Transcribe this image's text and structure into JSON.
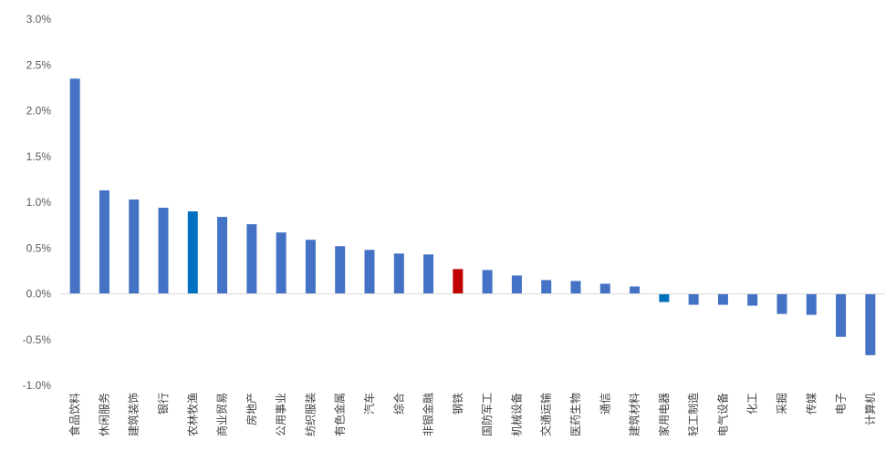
{
  "chart_data": {
    "type": "bar",
    "title": "",
    "xlabel": "",
    "ylabel": "",
    "ylim": [
      -1.0,
      3.0
    ],
    "yticks": [
      -1.0,
      -0.5,
      0.0,
      0.5,
      1.0,
      1.5,
      2.0,
      2.5,
      3.0
    ],
    "ytick_labels": [
      "-1.0%",
      "-0.5%",
      "0.0%",
      "0.5%",
      "1.0%",
      "1.5%",
      "2.0%",
      "2.5%",
      "3.0%"
    ],
    "grid": false,
    "legend": "none",
    "categories": [
      "食品饮料",
      "休闲服务",
      "建筑装饰",
      "银行",
      "农林牧渔",
      "商业贸易",
      "房地产",
      "公用事业",
      "纺织服装",
      "有色金属",
      "汽车",
      "综合",
      "非银金融",
      "钢铁",
      "国防军工",
      "机械设备",
      "交通运输",
      "医药生物",
      "通信",
      "建筑材料",
      "家用电器",
      "轻工制造",
      "电气设备",
      "化工",
      "采掘",
      "传媒",
      "电子",
      "计算机"
    ],
    "values": [
      2.35,
      1.13,
      1.03,
      0.94,
      0.9,
      0.84,
      0.76,
      0.67,
      0.59,
      0.52,
      0.48,
      0.44,
      0.43,
      0.27,
      0.26,
      0.2,
      0.15,
      0.14,
      0.11,
      0.08,
      -0.09,
      -0.12,
      -0.12,
      -0.13,
      -0.22,
      -0.23,
      -0.47,
      -0.67
    ],
    "colors": {
      "default": "#4472C4",
      "highlight_blue": "#0070C0",
      "highlight_red": "#C00000",
      "axis": "#D9D9D9"
    },
    "highlight": {
      "农林牧渔": "highlight_blue",
      "家用电器": "highlight_blue",
      "钢铁": "highlight_red"
    }
  }
}
